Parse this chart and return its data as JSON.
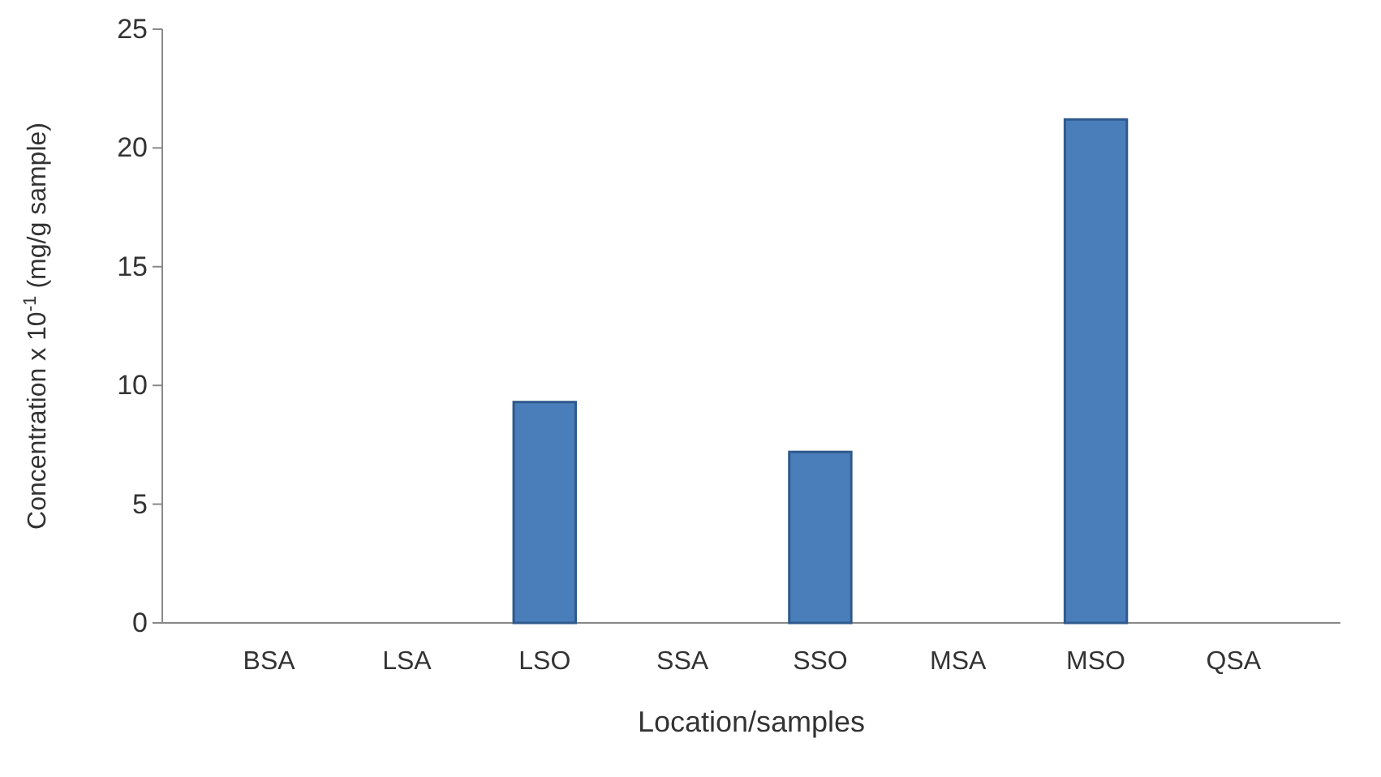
{
  "chart_data": {
    "type": "bar",
    "categories": [
      "BSA",
      "LSA",
      "LSO",
      "SSA",
      "SSO",
      "MSA",
      "MSO",
      "QSA"
    ],
    "values": [
      0,
      0,
      9.3,
      0,
      7.2,
      0,
      21.2,
      0
    ],
    "color": "#4a7ebb",
    "xlabel": "Location/samples",
    "ylabel": "Concentration x 10$^{-1}$ (mg/g sample)",
    "ylim": [
      0,
      25
    ],
    "yticks": [
      0,
      5,
      10,
      15,
      20,
      25
    ],
    "grid": false
  }
}
